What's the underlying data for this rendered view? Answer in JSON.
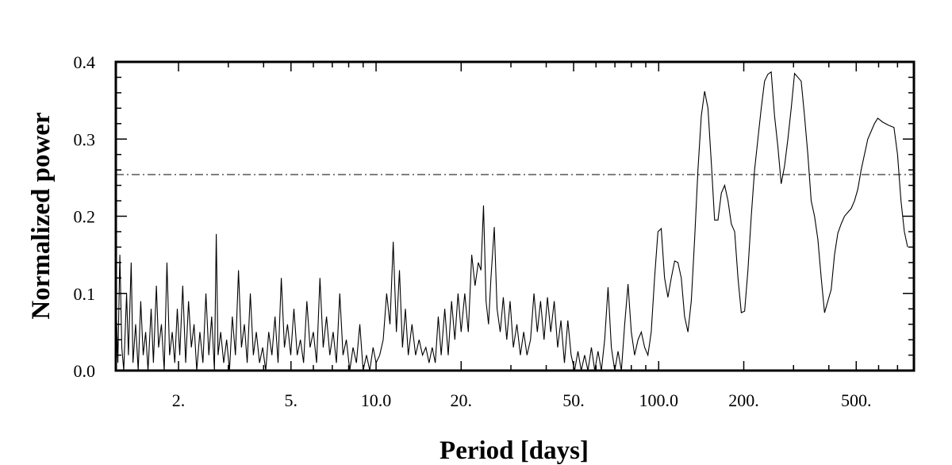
{
  "chart_data": {
    "type": "line",
    "title": "",
    "xlabel": "Period [days]",
    "ylabel": "Normalized power",
    "x_scale": "log",
    "xlim": [
      1.2,
      800
    ],
    "ylim": [
      0,
      0.4
    ],
    "x_ticks": [
      {
        "value": 2,
        "label": "2."
      },
      {
        "value": 5,
        "label": "5."
      },
      {
        "value": 10,
        "label": "10.0"
      },
      {
        "value": 20,
        "label": "20."
      },
      {
        "value": 50,
        "label": "50."
      },
      {
        "value": 100,
        "label": "100.0"
      },
      {
        "value": 200,
        "label": "200."
      },
      {
        "value": 500,
        "label": "500."
      }
    ],
    "y_ticks": [
      {
        "value": 0.0,
        "label": "0.0"
      },
      {
        "value": 0.1,
        "label": "0.1"
      },
      {
        "value": 0.2,
        "label": "0.2"
      },
      {
        "value": 0.3,
        "label": "0.3"
      },
      {
        "value": 0.4,
        "label": "0.4"
      }
    ],
    "threshold": {
      "y": 0.254,
      "style": "dash-dot"
    },
    "series": [
      {
        "color": "#000000",
        "points": [
          [
            1.2,
            0.1
          ],
          [
            1.22,
            0.01
          ],
          [
            1.24,
            0.15
          ],
          [
            1.26,
            0.03
          ],
          [
            1.28,
            0.0
          ],
          [
            1.31,
            0.1
          ],
          [
            1.33,
            0.02
          ],
          [
            1.36,
            0.14
          ],
          [
            1.38,
            0.01
          ],
          [
            1.41,
            0.06
          ],
          [
            1.44,
            0.0
          ],
          [
            1.47,
            0.09
          ],
          [
            1.5,
            0.02
          ],
          [
            1.53,
            0.05
          ],
          [
            1.56,
            0.0
          ],
          [
            1.6,
            0.08
          ],
          [
            1.63,
            0.01
          ],
          [
            1.67,
            0.11
          ],
          [
            1.7,
            0.03
          ],
          [
            1.74,
            0.06
          ],
          [
            1.78,
            0.0
          ],
          [
            1.82,
            0.14
          ],
          [
            1.86,
            0.02
          ],
          [
            1.9,
            0.05
          ],
          [
            1.94,
            0.01
          ],
          [
            1.98,
            0.08
          ],
          [
            2.02,
            0.02
          ],
          [
            2.07,
            0.11
          ],
          [
            2.12,
            0.01
          ],
          [
            2.17,
            0.09
          ],
          [
            2.22,
            0.03
          ],
          [
            2.27,
            0.06
          ],
          [
            2.32,
            0.0
          ],
          [
            2.38,
            0.05
          ],
          [
            2.44,
            0.01
          ],
          [
            2.5,
            0.1
          ],
          [
            2.56,
            0.02
          ],
          [
            2.62,
            0.07
          ],
          [
            2.68,
            0.0
          ],
          [
            2.72,
            0.177
          ],
          [
            2.76,
            0.02
          ],
          [
            2.82,
            0.05
          ],
          [
            2.89,
            0.01
          ],
          [
            2.96,
            0.04
          ],
          [
            3.03,
            0.0
          ],
          [
            3.1,
            0.07
          ],
          [
            3.18,
            0.02
          ],
          [
            3.26,
            0.13
          ],
          [
            3.34,
            0.03
          ],
          [
            3.42,
            0.06
          ],
          [
            3.5,
            0.01
          ],
          [
            3.59,
            0.1
          ],
          [
            3.68,
            0.02
          ],
          [
            3.77,
            0.05
          ],
          [
            3.87,
            0.01
          ],
          [
            3.97,
            0.03
          ],
          [
            4.07,
            0.0
          ],
          [
            4.17,
            0.05
          ],
          [
            4.28,
            0.02
          ],
          [
            4.39,
            0.07
          ],
          [
            4.5,
            0.01
          ],
          [
            4.62,
            0.12
          ],
          [
            4.74,
            0.03
          ],
          [
            4.86,
            0.06
          ],
          [
            4.99,
            0.02
          ],
          [
            5.12,
            0.08
          ],
          [
            5.26,
            0.02
          ],
          [
            5.4,
            0.04
          ],
          [
            5.54,
            0.01
          ],
          [
            5.69,
            0.09
          ],
          [
            5.84,
            0.03
          ],
          [
            6.0,
            0.05
          ],
          [
            6.16,
            0.01
          ],
          [
            6.33,
            0.12
          ],
          [
            6.5,
            0.03
          ],
          [
            6.68,
            0.07
          ],
          [
            6.86,
            0.02
          ],
          [
            7.05,
            0.05
          ],
          [
            7.24,
            0.01
          ],
          [
            7.44,
            0.1
          ],
          [
            7.64,
            0.02
          ],
          [
            7.85,
            0.04
          ],
          [
            8.07,
            0.0
          ],
          [
            8.29,
            0.03
          ],
          [
            8.52,
            0.01
          ],
          [
            8.76,
            0.06
          ],
          [
            9.0,
            0.0
          ],
          [
            9.25,
            0.02
          ],
          [
            9.5,
            0.0
          ],
          [
            9.76,
            0.03
          ],
          [
            10.0,
            0.01
          ],
          [
            10.3,
            0.02
          ],
          [
            10.6,
            0.04
          ],
          [
            10.9,
            0.1
          ],
          [
            11.2,
            0.06
          ],
          [
            11.5,
            0.167
          ],
          [
            11.8,
            0.05
          ],
          [
            12.1,
            0.13
          ],
          [
            12.4,
            0.03
          ],
          [
            12.7,
            0.08
          ],
          [
            13.0,
            0.02
          ],
          [
            13.4,
            0.06
          ],
          [
            13.8,
            0.02
          ],
          [
            14.2,
            0.04
          ],
          [
            14.6,
            0.02
          ],
          [
            15.0,
            0.03
          ],
          [
            15.4,
            0.01
          ],
          [
            15.8,
            0.03
          ],
          [
            16.2,
            0.01
          ],
          [
            16.6,
            0.07
          ],
          [
            17.0,
            0.02
          ],
          [
            17.5,
            0.08
          ],
          [
            18.0,
            0.02
          ],
          [
            18.5,
            0.09
          ],
          [
            19.0,
            0.04
          ],
          [
            19.5,
            0.1
          ],
          [
            20.0,
            0.05
          ],
          [
            20.6,
            0.1
          ],
          [
            21.2,
            0.05
          ],
          [
            21.8,
            0.15
          ],
          [
            22.4,
            0.11
          ],
          [
            23.0,
            0.14
          ],
          [
            23.5,
            0.13
          ],
          [
            24.0,
            0.214
          ],
          [
            24.5,
            0.09
          ],
          [
            25.0,
            0.06
          ],
          [
            25.5,
            0.12
          ],
          [
            26.2,
            0.186
          ],
          [
            26.8,
            0.08
          ],
          [
            27.5,
            0.05
          ],
          [
            28.2,
            0.095
          ],
          [
            29.0,
            0.04
          ],
          [
            29.8,
            0.09
          ],
          [
            30.6,
            0.03
          ],
          [
            31.5,
            0.06
          ],
          [
            32.4,
            0.02
          ],
          [
            33.3,
            0.05
          ],
          [
            34.2,
            0.02
          ],
          [
            35.2,
            0.04
          ],
          [
            36.2,
            0.1
          ],
          [
            37.2,
            0.05
          ],
          [
            38.2,
            0.09
          ],
          [
            39.3,
            0.04
          ],
          [
            40.4,
            0.095
          ],
          [
            41.5,
            0.05
          ],
          [
            42.7,
            0.09
          ],
          [
            43.9,
            0.03
          ],
          [
            45.1,
            0.065
          ],
          [
            46.4,
            0.01
          ],
          [
            47.7,
            0.065
          ],
          [
            49.0,
            0.02
          ],
          [
            50.4,
            0.0
          ],
          [
            51.8,
            0.025
          ],
          [
            53.2,
            0.0
          ],
          [
            54.7,
            0.02
          ],
          [
            56.2,
            0.0
          ],
          [
            57.8,
            0.03
          ],
          [
            59.4,
            0.0
          ],
          [
            61.0,
            0.025
          ],
          [
            62.7,
            0.0
          ],
          [
            64.4,
            0.04
          ],
          [
            66.2,
            0.108
          ],
          [
            68.0,
            0.03
          ],
          [
            69.9,
            0.0
          ],
          [
            71.8,
            0.025
          ],
          [
            73.8,
            0.0
          ],
          [
            75.8,
            0.06
          ],
          [
            77.9,
            0.112
          ],
          [
            80.0,
            0.05
          ],
          [
            82.2,
            0.02
          ],
          [
            84.5,
            0.04
          ],
          [
            86.8,
            0.05
          ],
          [
            89.2,
            0.03
          ],
          [
            91.6,
            0.02
          ],
          [
            94.1,
            0.05
          ],
          [
            96.7,
            0.12
          ],
          [
            99.4,
            0.18
          ],
          [
            102.1,
            0.184
          ],
          [
            104.9,
            0.12
          ],
          [
            107.8,
            0.095
          ],
          [
            110.8,
            0.12
          ],
          [
            113.9,
            0.142
          ],
          [
            117.0,
            0.14
          ],
          [
            120.2,
            0.12
          ],
          [
            123.5,
            0.07
          ],
          [
            126.9,
            0.05
          ],
          [
            130.4,
            0.09
          ],
          [
            134.0,
            0.17
          ],
          [
            137.7,
            0.26
          ],
          [
            141.5,
            0.33
          ],
          [
            145.4,
            0.362
          ],
          [
            149.4,
            0.34
          ],
          [
            153.5,
            0.27
          ],
          [
            157.7,
            0.195
          ],
          [
            162.1,
            0.195
          ],
          [
            166.6,
            0.23
          ],
          [
            171.2,
            0.24
          ],
          [
            175.9,
            0.22
          ],
          [
            180.7,
            0.19
          ],
          [
            185.7,
            0.18
          ],
          [
            190.8,
            0.12
          ],
          [
            196.0,
            0.075
          ],
          [
            201.4,
            0.077
          ],
          [
            206.9,
            0.13
          ],
          [
            212.6,
            0.2
          ],
          [
            218.4,
            0.26
          ],
          [
            224.4,
            0.3
          ],
          [
            230.6,
            0.34
          ],
          [
            236.9,
            0.375
          ],
          [
            243.4,
            0.384
          ],
          [
            250.1,
            0.387
          ],
          [
            257.0,
            0.33
          ],
          [
            264.1,
            0.29
          ],
          [
            271.3,
            0.242
          ],
          [
            278.8,
            0.265
          ],
          [
            286.5,
            0.3
          ],
          [
            294.4,
            0.34
          ],
          [
            302.5,
            0.385
          ],
          [
            310.8,
            0.38
          ],
          [
            319.3,
            0.375
          ],
          [
            328.1,
            0.33
          ],
          [
            337.1,
            0.28
          ],
          [
            346.4,
            0.22
          ],
          [
            356.0,
            0.2
          ],
          [
            365.8,
            0.17
          ],
          [
            375.9,
            0.12
          ],
          [
            386.2,
            0.075
          ],
          [
            396.8,
            0.09
          ],
          [
            407.7,
            0.105
          ],
          [
            418.9,
            0.15
          ],
          [
            430.4,
            0.178
          ],
          [
            442.2,
            0.19
          ],
          [
            454.4,
            0.2
          ],
          [
            466.9,
            0.205
          ],
          [
            479.8,
            0.21
          ],
          [
            493.0,
            0.22
          ],
          [
            506.5,
            0.235
          ],
          [
            520.4,
            0.26
          ],
          [
            534.7,
            0.28
          ],
          [
            549.4,
            0.3
          ],
          [
            564.5,
            0.31
          ],
          [
            580.0,
            0.32
          ],
          [
            596.0,
            0.327
          ],
          [
            620.0,
            0.322
          ],
          [
            650.0,
            0.318
          ],
          [
            680.0,
            0.315
          ],
          [
            700.0,
            0.28
          ],
          [
            720.0,
            0.22
          ],
          [
            740.0,
            0.18
          ],
          [
            760.0,
            0.16
          ]
        ]
      }
    ]
  }
}
